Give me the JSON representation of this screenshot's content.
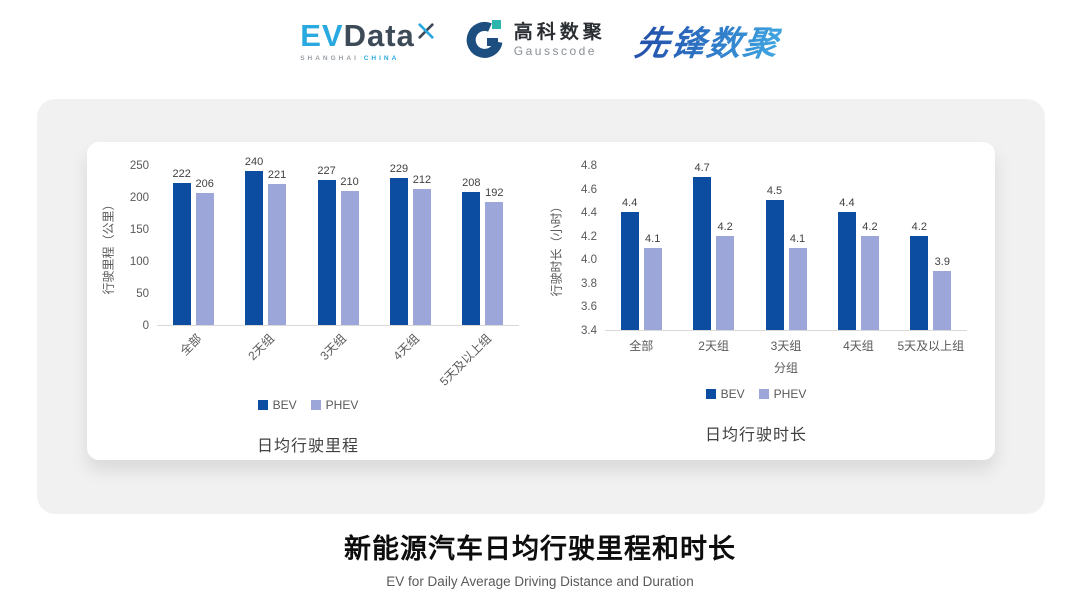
{
  "header": {
    "evdata_logo": {
      "part1": "EV",
      "part2": "Data",
      "sub1": "SHANGHAI",
      "sub2": "CHINA"
    },
    "gausscode_logo": {
      "name_cn": "高科数聚",
      "name_en": "Gausscode"
    },
    "pioneer_logo": "先锋数聚"
  },
  "colors": {
    "series": [
      "#0C4DA2",
      "#9CA6D8"
    ],
    "bev": "#0C4DA2",
    "phev": "#9CA6D8",
    "axis_line": "#D9D9D9"
  },
  "chart_data": [
    {
      "type": "bar",
      "title": "日均行驶里程",
      "ylabel": "行驶里程（公里）",
      "xlabel": "",
      "categories": [
        "全部",
        "2天组",
        "3天组",
        "4天组",
        "5天及以上组"
      ],
      "series": [
        {
          "name": "BEV",
          "values": [
            222,
            240,
            227,
            229,
            208
          ]
        },
        {
          "name": "PHEV",
          "values": [
            206,
            221,
            210,
            212,
            192
          ]
        }
      ],
      "ylim": [
        0,
        250
      ],
      "yticks": [
        "0",
        "50",
        "100",
        "150",
        "200",
        "250"
      ],
      "xlabel_rotation": 45,
      "legend_position": "bottom",
      "grid": false
    },
    {
      "type": "bar",
      "title": "日均行驶时长",
      "ylabel": "行驶时长（小时）",
      "xlabel": "分组",
      "categories": [
        "全部",
        "2天组",
        "3天组",
        "4天组",
        "5天及以上组"
      ],
      "series": [
        {
          "name": "BEV",
          "values": [
            4.4,
            4.7,
            4.5,
            4.4,
            4.2
          ]
        },
        {
          "name": "PHEV",
          "values": [
            4.1,
            4.2,
            4.1,
            4.2,
            3.9
          ]
        }
      ],
      "ylim": [
        3.4,
        4.8
      ],
      "yticks": [
        "3.4",
        "3.6",
        "3.8",
        "4.0",
        "4.2",
        "4.4",
        "4.6",
        "4.8"
      ],
      "xlabel_rotation": 0,
      "legend_position": "bottom",
      "grid": false
    }
  ],
  "caption": {
    "title": "新能源汽车日均行驶里程和时长",
    "subtitle": "EV for Daily Average Driving Distance and Duration"
  }
}
